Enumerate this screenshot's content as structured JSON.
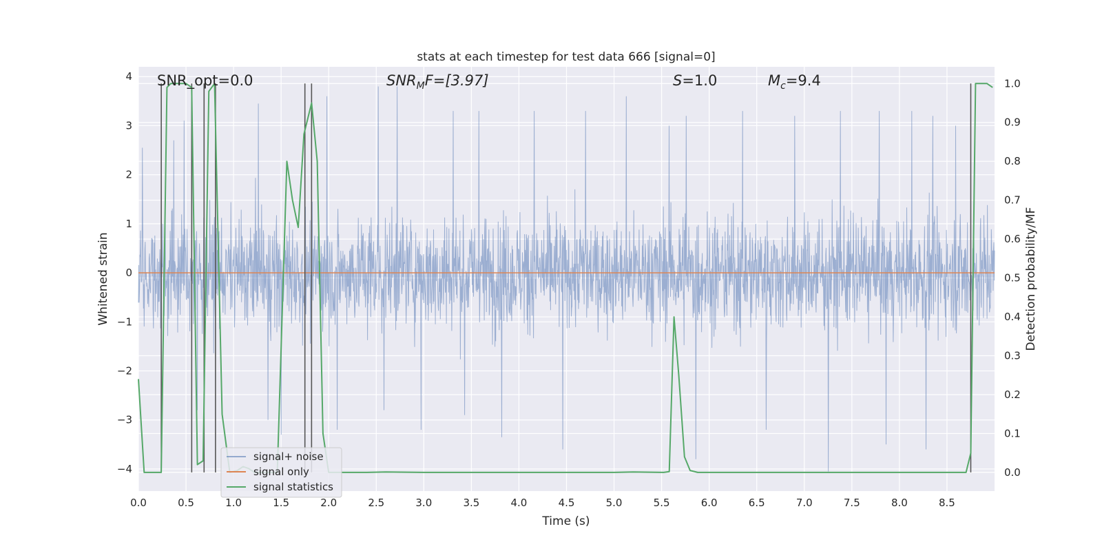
{
  "chart_data": {
    "type": "line",
    "title": "stats at each timestep for test data 666 [signal=0]",
    "xlabel": "Time (s)",
    "ylabel": "Whitened strain",
    "y2label": "Detection probability/MF",
    "xlim": [
      0.0,
      9.0
    ],
    "ylim": [
      -4.45,
      4.2
    ],
    "y2lim": [
      -0.048,
      1.043
    ],
    "xticks": [
      "0.0",
      "0.5",
      "1.0",
      "1.5",
      "2.0",
      "2.5",
      "3.0",
      "3.5",
      "4.0",
      "4.5",
      "5.0",
      "5.5",
      "6.0",
      "6.5",
      "7.0",
      "7.5",
      "8.0",
      "8.5"
    ],
    "yticks": [
      "−4",
      "−3",
      "−2",
      "−1",
      "0",
      "1",
      "2",
      "3",
      "4"
    ],
    "y2ticks": [
      "0.0",
      "0.1",
      "0.2",
      "0.3",
      "0.4",
      "0.5",
      "0.6",
      "0.7",
      "0.8",
      "0.9",
      "1.0"
    ],
    "grid": true,
    "legend_position": "lower-left",
    "annotations": {
      "snr_opt": "SNR_opt=0.0",
      "snr_mf_sym": "SNR",
      "snr_mf_sub": "M",
      "snr_mf_rest": "F=[3.97]",
      "s_sym": "S",
      "s_rest": "=1.0",
      "mc_sym": "M",
      "mc_sub": "c",
      "mc_rest": "=9.4"
    },
    "series": [
      {
        "name": "signal+ noise",
        "color": "#4c72b0",
        "kind": "noise",
        "band_typical": [
          -1.4,
          1.4
        ],
        "extremes": [
          {
            "x": 0.04,
            "y": 2.55
          },
          {
            "x": 0.37,
            "y": 2.7
          },
          {
            "x": 0.48,
            "y": 3.1
          },
          {
            "x": 0.62,
            "y": -2.8
          },
          {
            "x": 1.26,
            "y": 3.45
          },
          {
            "x": 1.36,
            "y": -3.0
          },
          {
            "x": 1.5,
            "y": -3.3
          },
          {
            "x": 1.98,
            "y": 3.6
          },
          {
            "x": 2.09,
            "y": -3.2
          },
          {
            "x": 2.52,
            "y": 3.8
          },
          {
            "x": 2.58,
            "y": -2.8
          },
          {
            "x": 2.72,
            "y": 3.8
          },
          {
            "x": 2.97,
            "y": -3.2
          },
          {
            "x": 3.31,
            "y": 3.3
          },
          {
            "x": 3.43,
            "y": -2.9
          },
          {
            "x": 3.58,
            "y": 3.3
          },
          {
            "x": 3.82,
            "y": -3.35
          },
          {
            "x": 4.16,
            "y": 3.3
          },
          {
            "x": 4.46,
            "y": -3.6
          },
          {
            "x": 4.7,
            "y": 3.3
          },
          {
            "x": 5.13,
            "y": 3.6
          },
          {
            "x": 5.58,
            "y": 3.0
          },
          {
            "x": 5.76,
            "y": 3.2
          },
          {
            "x": 5.86,
            "y": -3.8
          },
          {
            "x": 6.35,
            "y": 3.3
          },
          {
            "x": 6.6,
            "y": -3.2
          },
          {
            "x": 6.9,
            "y": 3.2
          },
          {
            "x": 7.25,
            "y": -4.05
          },
          {
            "x": 7.38,
            "y": 3.3
          },
          {
            "x": 7.79,
            "y": 3.3
          },
          {
            "x": 7.86,
            "y": -3.5
          },
          {
            "x": 8.13,
            "y": 3.3
          },
          {
            "x": 8.28,
            "y": -3.6
          },
          {
            "x": 8.35,
            "y": 3.2
          },
          {
            "x": 8.59,
            "y": 3.0
          }
        ]
      },
      {
        "name": "signal only",
        "color": "#dd8452",
        "kind": "line",
        "x": [
          0.0,
          9.0
        ],
        "y": [
          0.0,
          0.0
        ]
      },
      {
        "name": "signal statistics",
        "color": "#55a868",
        "kind": "line_y2",
        "x": [
          0.0,
          0.06,
          0.12,
          0.18,
          0.24,
          0.3,
          0.34,
          0.42,
          0.5,
          0.56,
          0.62,
          0.68,
          0.74,
          0.8,
          0.88,
          0.96,
          1.04,
          1.1,
          1.16,
          1.22,
          1.3,
          1.38,
          1.46,
          1.56,
          1.62,
          1.68,
          1.74,
          1.82,
          1.88,
          1.94,
          2.0,
          2.4,
          2.6,
          3.0,
          4.0,
          5.0,
          5.2,
          5.52,
          5.58,
          5.63,
          5.68,
          5.74,
          5.8,
          5.88,
          6.5,
          7.5,
          8.5,
          8.7,
          8.75,
          8.8,
          8.86,
          8.92,
          8.98
        ],
        "y": [
          0.24,
          0.0,
          0.0,
          0.0,
          0.0,
          0.99,
          1.0,
          1.0,
          1.0,
          0.99,
          0.02,
          0.03,
          0.98,
          1.0,
          0.15,
          0.0,
          0.005,
          0.015,
          0.01,
          0.0,
          0.0,
          0.0,
          0.0,
          0.8,
          0.7,
          0.63,
          0.87,
          0.95,
          0.8,
          0.1,
          0.0,
          0.0,
          0.001,
          0.0,
          0.0,
          0.0,
          0.001,
          0.0,
          0.002,
          0.4,
          0.25,
          0.04,
          0.005,
          0.0,
          0.0,
          0.0,
          0.0,
          0.0,
          0.05,
          1.0,
          1.0,
          1.0,
          0.99
        ]
      }
    ],
    "vertical_lines": {
      "color": "#555555",
      "x": [
        0.24,
        0.56,
        0.69,
        0.81,
        1.75,
        1.82,
        8.75
      ]
    }
  }
}
